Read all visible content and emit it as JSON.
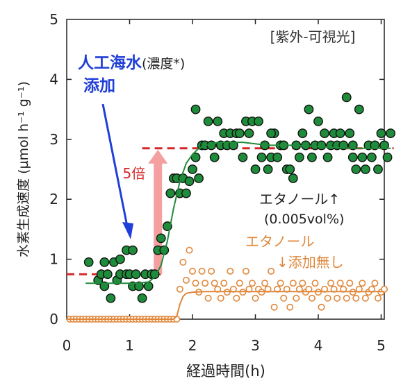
{
  "chart_data": {
    "type": "scatter",
    "title": "[紫外-可視光]",
    "xlabel": "経過時間(h)",
    "ylabel": "水素生成速度 (µmol h⁻¹ g⁻¹)",
    "xlim": [
      0,
      5.3
    ],
    "ylim": [
      0,
      5
    ],
    "xticks": [
      "0",
      "1",
      "2",
      "3",
      "4",
      "5"
    ],
    "yticks": [
      "0",
      "1",
      "2",
      "3",
      "4",
      "5"
    ],
    "grid": false,
    "series": [
      {
        "marker": "filled-circle",
        "color": "#1e8c3a",
        "points": [
          [
            0.35,
            0.95
          ],
          [
            0.5,
            0.65
          ],
          [
            0.55,
            0.75
          ],
          [
            0.6,
            0.95
          ],
          [
            0.6,
            0.55
          ],
          [
            0.65,
            0.75
          ],
          [
            0.7,
            0.35
          ],
          [
            0.75,
            0.95
          ],
          [
            0.8,
            0.65
          ],
          [
            0.85,
            0.75
          ],
          [
            0.85,
            1.0
          ],
          [
            0.95,
            0.75
          ],
          [
            0.95,
            1.15
          ],
          [
            1.0,
            0.75
          ],
          [
            1.05,
            1.15
          ],
          [
            1.05,
            0.55
          ],
          [
            1.1,
            0.75
          ],
          [
            1.15,
            0.55
          ],
          [
            1.2,
            0.35
          ],
          [
            1.25,
            0.75
          ],
          [
            1.3,
            0.55
          ],
          [
            1.35,
            0.75
          ],
          [
            1.4,
            0.75
          ],
          [
            1.45,
            1.15
          ],
          [
            1.5,
            1.35
          ],
          [
            1.55,
            1.15
          ],
          [
            1.6,
            1.55
          ],
          [
            1.65,
            2.1
          ],
          [
            1.7,
            2.35
          ],
          [
            1.75,
            2.35
          ],
          [
            1.8,
            2.1
          ],
          [
            1.85,
            2.35
          ],
          [
            1.9,
            2.1
          ],
          [
            1.95,
            2.3
          ],
          [
            2.0,
            2.5
          ],
          [
            2.05,
            2.7
          ],
          [
            2.05,
            3.5
          ],
          [
            2.1,
            2.35
          ],
          [
            2.15,
            2.9
          ],
          [
            2.2,
            2.9
          ],
          [
            2.25,
            3.3
          ],
          [
            2.3,
            2.9
          ],
          [
            2.35,
            2.7
          ],
          [
            2.4,
            3.3
          ],
          [
            2.45,
            2.9
          ],
          [
            2.5,
            3.1
          ],
          [
            2.55,
            2.9
          ],
          [
            2.6,
            3.1
          ],
          [
            2.65,
            2.9
          ],
          [
            2.7,
            3.1
          ],
          [
            2.75,
            3.1
          ],
          [
            2.8,
            2.7
          ],
          [
            2.85,
            3.3
          ],
          [
            2.9,
            3.1
          ],
          [
            2.95,
            3.3
          ],
          [
            3.0,
            2.5
          ],
          [
            3.05,
            3.3
          ],
          [
            3.1,
            2.7
          ],
          [
            3.15,
            2.9
          ],
          [
            3.2,
            2.5
          ],
          [
            3.25,
            2.7
          ],
          [
            3.3,
            3.1
          ],
          [
            3.35,
            2.7
          ],
          [
            3.4,
            2.9
          ],
          [
            3.45,
            2.9
          ],
          [
            3.5,
            2.5
          ],
          [
            3.55,
            2.5
          ],
          [
            3.6,
            2.35
          ],
          [
            3.65,
            2.9
          ],
          [
            3.7,
            2.7
          ],
          [
            3.75,
            3.1
          ],
          [
            3.8,
            2.9
          ],
          [
            3.85,
            3.5
          ],
          [
            3.9,
            2.7
          ],
          [
            3.95,
            2.9
          ],
          [
            4.0,
            3.3
          ],
          [
            4.05,
            2.9
          ],
          [
            4.1,
            3.1
          ],
          [
            4.15,
            2.7
          ],
          [
            4.2,
            2.9
          ],
          [
            4.25,
            3.1
          ],
          [
            4.3,
            2.9
          ],
          [
            4.35,
            3.1
          ],
          [
            4.4,
            2.9
          ],
          [
            4.45,
            3.7
          ],
          [
            4.5,
            3.1
          ],
          [
            4.55,
            2.7
          ],
          [
            4.6,
            2.5
          ],
          [
            4.65,
            3.5
          ],
          [
            4.7,
            2.7
          ],
          [
            4.75,
            2.5
          ],
          [
            4.8,
            2.9
          ],
          [
            4.85,
            2.7
          ],
          [
            4.9,
            2.9
          ],
          [
            4.95,
            2.5
          ],
          [
            5.0,
            3.1
          ],
          [
            5.05,
            2.9
          ],
          [
            5.1,
            2.7
          ],
          [
            5.15,
            3.1
          ],
          [
            4.55,
            2.9
          ],
          [
            3.25,
            3.1
          ]
        ]
      },
      {
        "marker": "open-circle",
        "color": "#e0873a",
        "points": [
          [
            0.05,
            0.0
          ],
          [
            0.1,
            0.0
          ],
          [
            0.15,
            0.0
          ],
          [
            0.2,
            0.0
          ],
          [
            0.25,
            0.0
          ],
          [
            0.3,
            0.0
          ],
          [
            0.35,
            0.0
          ],
          [
            0.4,
            0.0
          ],
          [
            0.45,
            0.0
          ],
          [
            0.5,
            0.0
          ],
          [
            0.55,
            0.0
          ],
          [
            0.6,
            0.0
          ],
          [
            0.65,
            0.0
          ],
          [
            0.7,
            0.0
          ],
          [
            0.75,
            0.0
          ],
          [
            0.8,
            0.0
          ],
          [
            0.85,
            0.0
          ],
          [
            0.9,
            0.0
          ],
          [
            0.95,
            0.0
          ],
          [
            1.0,
            0.0
          ],
          [
            1.05,
            0.0
          ],
          [
            1.1,
            0.0
          ],
          [
            1.15,
            0.0
          ],
          [
            1.2,
            0.0
          ],
          [
            1.25,
            0.0
          ],
          [
            1.3,
            0.0
          ],
          [
            1.35,
            0.0
          ],
          [
            1.4,
            0.0
          ],
          [
            1.45,
            0.0
          ],
          [
            1.5,
            0.0
          ],
          [
            1.55,
            0.0
          ],
          [
            1.6,
            0.0
          ],
          [
            1.65,
            0.0
          ],
          [
            1.7,
            0.0
          ],
          [
            1.75,
            0.0
          ],
          [
            1.8,
            0.5
          ],
          [
            1.85,
            0.95
          ],
          [
            1.9,
            0.65
          ],
          [
            1.95,
            1.15
          ],
          [
            2.0,
            0.8
          ],
          [
            2.05,
            0.6
          ],
          [
            2.1,
            0.45
          ],
          [
            2.15,
            0.8
          ],
          [
            2.2,
            0.6
          ],
          [
            2.25,
            0.35
          ],
          [
            2.3,
            0.8
          ],
          [
            2.35,
            0.6
          ],
          [
            2.4,
            0.5
          ],
          [
            2.45,
            0.35
          ],
          [
            2.5,
            0.6
          ],
          [
            2.55,
            0.45
          ],
          [
            2.6,
            0.8
          ],
          [
            2.65,
            0.5
          ],
          [
            2.7,
            0.35
          ],
          [
            2.75,
            0.6
          ],
          [
            2.8,
            0.45
          ],
          [
            2.85,
            0.8
          ],
          [
            2.9,
            0.5
          ],
          [
            2.95,
            0.6
          ],
          [
            3.0,
            0.35
          ],
          [
            3.05,
            0.5
          ],
          [
            3.1,
            0.45
          ],
          [
            3.15,
            0.6
          ],
          [
            3.2,
            0.5
          ],
          [
            3.25,
            0.8
          ],
          [
            3.3,
            0.2
          ],
          [
            3.35,
            0.5
          ],
          [
            3.4,
            0.6
          ],
          [
            3.45,
            0.35
          ],
          [
            3.5,
            0.5
          ],
          [
            3.55,
            0.2
          ],
          [
            3.6,
            0.6
          ],
          [
            3.65,
            0.35
          ],
          [
            3.7,
            0.5
          ],
          [
            3.75,
            0.6
          ],
          [
            3.8,
            0.45
          ],
          [
            3.85,
            0.5
          ],
          [
            3.9,
            0.35
          ],
          [
            3.95,
            0.6
          ],
          [
            4.0,
            0.45
          ],
          [
            4.05,
            0.2
          ],
          [
            4.1,
            0.5
          ],
          [
            4.15,
            0.35
          ],
          [
            4.2,
            0.6
          ],
          [
            4.25,
            0.5
          ],
          [
            4.3,
            0.35
          ],
          [
            4.35,
            0.6
          ],
          [
            4.4,
            0.5
          ],
          [
            4.45,
            0.35
          ],
          [
            4.5,
            0.6
          ],
          [
            4.55,
            0.45
          ],
          [
            4.6,
            0.35
          ],
          [
            4.65,
            0.5
          ],
          [
            4.7,
            0.6
          ],
          [
            4.75,
            0.35
          ],
          [
            4.8,
            0.45
          ],
          [
            4.85,
            0.5
          ],
          [
            4.9,
            0.6
          ],
          [
            4.95,
            0.35
          ],
          [
            5.0,
            0.45
          ],
          [
            5.05,
            0.5
          ]
        ]
      }
    ],
    "fit_curves": [
      {
        "color": "#1e8c3a",
        "x": [
          0.3,
          0.6,
          0.9,
          1.1,
          1.3,
          1.4,
          1.5,
          1.6,
          1.7,
          1.8,
          1.9,
          2.0,
          2.1,
          2.2,
          2.4,
          2.8,
          3.2,
          3.6,
          4.0,
          4.5,
          5.15
        ],
        "y": [
          0.6,
          0.6,
          0.6,
          0.6,
          0.62,
          0.7,
          0.9,
          1.3,
          1.85,
          2.3,
          2.6,
          2.75,
          2.85,
          2.9,
          2.95,
          2.95,
          2.9,
          2.9,
          2.88,
          2.85,
          2.85
        ]
      },
      {
        "color": "#e0873a",
        "x": [
          0.0,
          0.5,
          1.0,
          1.5,
          1.7,
          1.75,
          1.8,
          1.85,
          1.9,
          2.0,
          2.2,
          2.6,
          3.0,
          3.5,
          4.0,
          4.5,
          5.05
        ],
        "y": [
          0.0,
          0.0,
          0.0,
          0.0,
          0.0,
          0.05,
          0.25,
          0.38,
          0.43,
          0.45,
          0.46,
          0.46,
          0.46,
          0.46,
          0.46,
          0.46,
          0.46
        ]
      }
    ],
    "reference_lines": [
      {
        "y": 0.75,
        "x_start": 0.0,
        "x_end": 1.5,
        "color": "#d62728",
        "style": "dashed"
      },
      {
        "y": 2.85,
        "x_start": 1.2,
        "x_end": 5.2,
        "color": "#d62728",
        "style": "dashed"
      }
    ],
    "arrows": [
      {
        "kind": "enhancement",
        "x": 1.45,
        "y_from": 0.75,
        "y_to": 2.85,
        "color": "#f4a0a0",
        "label": "5倍"
      }
    ],
    "annotations": [
      {
        "text_main": "人工海水",
        "text_paren": "(濃度*)",
        "text_line2": "添加",
        "color": "#1f3fd6"
      },
      {
        "line1": "エタノール↑",
        "line2": "(0.005vol%)",
        "color": "#222222"
      },
      {
        "line1": "エタノール",
        "line2": "↓添加無し",
        "color": "#e0873a"
      }
    ]
  }
}
